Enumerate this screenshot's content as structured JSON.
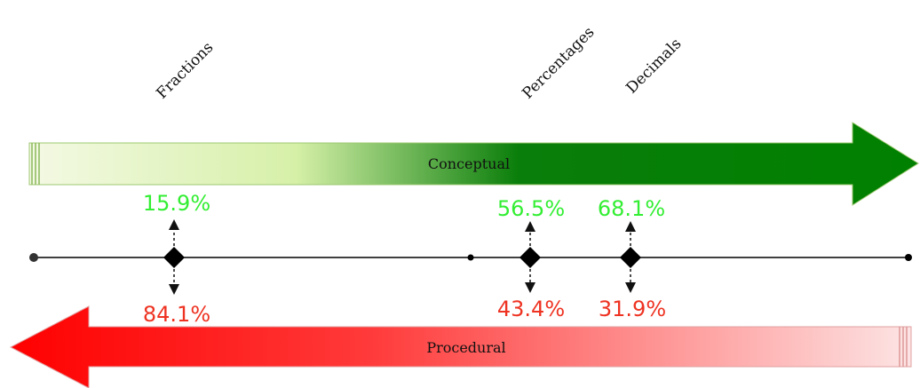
{
  "topics": [
    {
      "name": "Fractions",
      "conceptual": "15.9%",
      "procedural": "84.1%"
    },
    {
      "name": "Percentages",
      "conceptual": "56.5%",
      "procedural": "43.4%"
    },
    {
      "name": "Decimals",
      "conceptual": "68.1%",
      "procedural": "31.9%"
    }
  ],
  "conceptual_arrow": {
    "label": "Conceptual",
    "colors": [
      "#f4f9e4",
      "#d6f0a8",
      "#0a7e0a"
    ]
  },
  "procedural_arrow": {
    "label": "Procedural",
    "colors": [
      "#ff0000",
      "#ff3a3a",
      "#fde4e4"
    ]
  },
  "colors": {
    "conceptual_text": "#33ee33",
    "procedural_text": "#ee3322",
    "axis": "#000000"
  }
}
